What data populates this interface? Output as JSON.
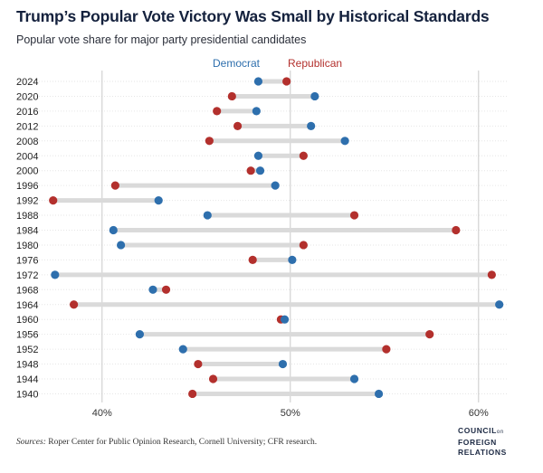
{
  "header": {
    "title": "Trump’s Popular Vote Victory Was Small by Historical Standards",
    "subtitle": "Popular vote share for major party presidential candidates"
  },
  "footer": {
    "source_label": "Sources:",
    "source_text": "Roper Center for Public Opinion Research, Cornell University; CFR research.",
    "logo_line1": "COUNCIL",
    "logo_small": "on",
    "logo_line2": "FOREIGN",
    "logo_line3": "RELATIONS"
  },
  "colors": {
    "democrat": "#2e6fad",
    "republican": "#b3302d",
    "connector": "#dadada",
    "grid": "#c9c9c9"
  },
  "chart_data": {
    "type": "dumbbell",
    "title": "Trump’s Popular Vote Victory Was Small by Historical Standards",
    "subtitle": "Popular vote share for major party presidential candidates",
    "xlim": [
      36.5,
      61.5
    ],
    "xticks": [
      40,
      50,
      60
    ],
    "xtick_labels": [
      "40%",
      "50%",
      "60%"
    ],
    "grid": "vertical",
    "legend": {
      "placement": "top-center",
      "entries": [
        "Democrat",
        "Republican"
      ]
    },
    "series": [
      {
        "name": "Democrat",
        "color": "#2e6fad"
      },
      {
        "name": "Republican",
        "color": "#b3302d"
      }
    ],
    "rows": [
      {
        "year": "2024",
        "dem": 48.3,
        "rep": 49.8
      },
      {
        "year": "2020",
        "dem": 51.3,
        "rep": 46.9
      },
      {
        "year": "2016",
        "dem": 48.2,
        "rep": 46.1
      },
      {
        "year": "2012",
        "dem": 51.1,
        "rep": 47.2
      },
      {
        "year": "2008",
        "dem": 52.9,
        "rep": 45.7
      },
      {
        "year": "2004",
        "dem": 48.3,
        "rep": 50.7
      },
      {
        "year": "2000",
        "dem": 48.4,
        "rep": 47.9
      },
      {
        "year": "1996",
        "dem": 49.2,
        "rep": 40.7
      },
      {
        "year": "1992",
        "dem": 43.0,
        "rep": 37.4
      },
      {
        "year": "1988",
        "dem": 45.6,
        "rep": 53.4
      },
      {
        "year": "1984",
        "dem": 40.6,
        "rep": 58.8
      },
      {
        "year": "1980",
        "dem": 41.0,
        "rep": 50.7
      },
      {
        "year": "1976",
        "dem": 50.1,
        "rep": 48.0
      },
      {
        "year": "1972",
        "dem": 37.5,
        "rep": 60.7
      },
      {
        "year": "1968",
        "dem": 42.7,
        "rep": 43.4
      },
      {
        "year": "1964",
        "dem": 61.1,
        "rep": 38.5
      },
      {
        "year": "1960",
        "dem": 49.7,
        "rep": 49.5
      },
      {
        "year": "1956",
        "dem": 42.0,
        "rep": 57.4
      },
      {
        "year": "1952",
        "dem": 44.3,
        "rep": 55.1
      },
      {
        "year": "1948",
        "dem": 49.6,
        "rep": 45.1
      },
      {
        "year": "1944",
        "dem": 53.4,
        "rep": 45.9
      },
      {
        "year": "1940",
        "dem": 54.7,
        "rep": 44.8
      }
    ]
  }
}
